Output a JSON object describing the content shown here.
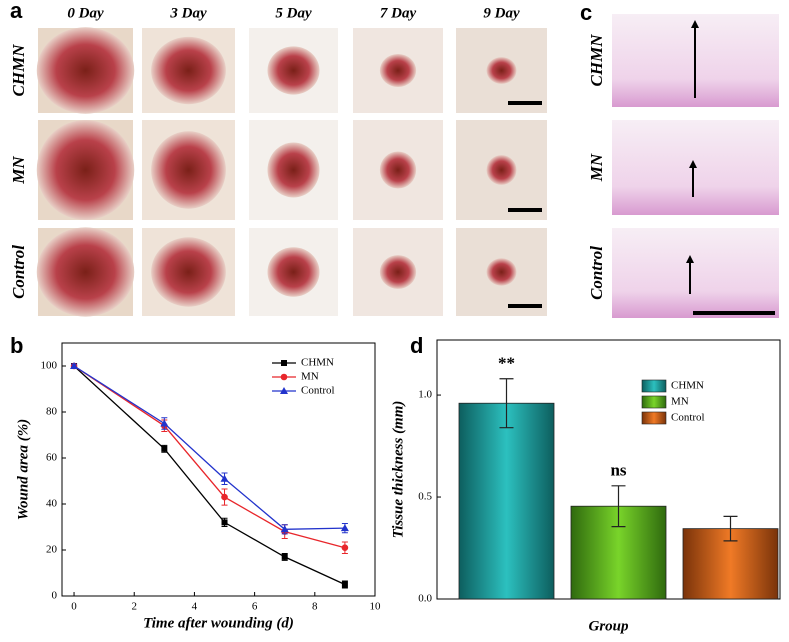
{
  "figure": {
    "panel_labels": [
      "a",
      "b",
      "c",
      "d"
    ],
    "days": [
      "0 Day",
      "3 Day",
      "5 Day",
      "7 Day",
      "9 Day"
    ],
    "groups_a": [
      "CHMN",
      "MN",
      "Control"
    ],
    "groups_c": [
      "CHMN",
      "MN",
      "Control"
    ]
  },
  "chart_data": [
    {
      "type": "line",
      "xlabel": "Time after wounding (d)",
      "ylabel": "Wound area (%)",
      "x": [
        0,
        3,
        5,
        7,
        9
      ],
      "series": [
        {
          "name": "CHMN",
          "color": "#000000",
          "marker": "square",
          "values": [
            100,
            64,
            32,
            17,
            5
          ],
          "errors": [
            0.8,
            1.5,
            1.8,
            1.5,
            1.5
          ]
        },
        {
          "name": "MN",
          "color": "#e8262b",
          "marker": "circle",
          "values": [
            100,
            74,
            43,
            28,
            21
          ],
          "errors": [
            0.8,
            2.5,
            3.5,
            3,
            2.5
          ]
        },
        {
          "name": "Control",
          "color": "#2233cc",
          "marker": "triangle",
          "values": [
            100,
            75,
            51,
            29,
            29.5
          ],
          "errors": [
            0.8,
            2.5,
            2.5,
            2,
            2
          ]
        }
      ],
      "xlim": [
        -0.4,
        10
      ],
      "xticks": [
        0,
        2,
        4,
        6,
        8,
        10
      ],
      "ylim": [
        0,
        110
      ],
      "yticks": [
        0,
        20,
        40,
        60,
        80,
        100
      ],
      "legend": "top-right"
    },
    {
      "type": "bar",
      "xlabel": "Group",
      "ylabel": "Tissue thickness (mm)",
      "series": [
        {
          "name": "CHMN",
          "color": "#1a9a9a",
          "values": [
            0.96
          ],
          "errors": [
            0.12
          ],
          "annotation": "**"
        },
        {
          "name": "MN",
          "color": "#5fb81e",
          "values": [
            0.455
          ],
          "errors": [
            0.1
          ],
          "annotation": "ns"
        },
        {
          "name": "Control",
          "color": "#d0621a",
          "values": [
            0.345
          ],
          "errors": [
            0.06
          ]
        }
      ],
      "ylim": [
        0,
        1.27
      ],
      "yticks": [
        {
          "value": 0,
          "label": "0.0"
        },
        {
          "value": 0.5,
          "label": "0.5"
        },
        {
          "value": 1,
          "label": "1.0"
        }
      ],
      "legend": "top-right"
    }
  ]
}
